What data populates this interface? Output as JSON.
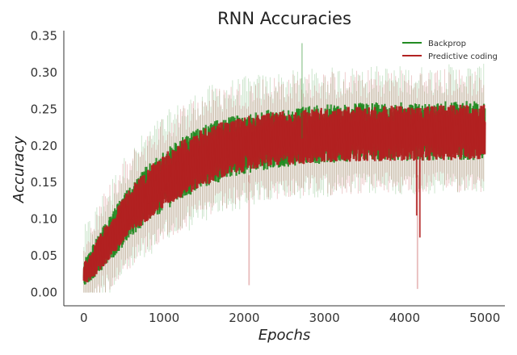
{
  "chart_data": {
    "type": "line",
    "title": "RNN Accuracies",
    "xlabel": "Epochs",
    "ylabel": "Accuracy",
    "xlim": [
      -250,
      5250
    ],
    "ylim": [
      -0.018,
      0.357
    ],
    "xticks": [
      0,
      1000,
      2000,
      3000,
      4000,
      5000
    ],
    "xtick_labels": [
      "0",
      "1000",
      "2000",
      "3000",
      "4000",
      "5000"
    ],
    "yticks": [
      0.0,
      0.05,
      0.1,
      0.15,
      0.2,
      0.25,
      0.3,
      0.35
    ],
    "ytick_labels": [
      "0.00",
      "0.05",
      "0.10",
      "0.15",
      "0.20",
      "0.25",
      "0.30",
      "0.35"
    ],
    "grid": false,
    "legend_position": "top-right",
    "x": [
      0,
      250,
      500,
      750,
      1000,
      1250,
      1500,
      1750,
      2000,
      2250,
      2500,
      2750,
      3000,
      3250,
      3500,
      3750,
      4000,
      4250,
      4500,
      4750,
      5000
    ],
    "series": [
      {
        "name": "Backprop",
        "color": "#228b22",
        "mean": [
          0.02,
          0.06,
          0.095,
          0.125,
          0.148,
          0.165,
          0.178,
          0.188,
          0.195,
          0.2,
          0.204,
          0.207,
          0.21,
          0.212,
          0.213,
          0.214,
          0.215,
          0.216,
          0.217,
          0.217,
          0.218
        ],
        "low": [
          0.0,
          0.02,
          0.05,
          0.075,
          0.095,
          0.11,
          0.125,
          0.135,
          0.145,
          0.15,
          0.155,
          0.158,
          0.16,
          0.162,
          0.163,
          0.163,
          0.163,
          0.163,
          0.164,
          0.164,
          0.165
        ],
        "high": [
          0.05,
          0.1,
          0.145,
          0.18,
          0.205,
          0.225,
          0.24,
          0.25,
          0.255,
          0.26,
          0.262,
          0.265,
          0.267,
          0.268,
          0.27,
          0.27,
          0.27,
          0.27,
          0.272,
          0.272,
          0.272
        ],
        "max_spike": 0.34
      },
      {
        "name": "Predictive coding",
        "color": "#b22222",
        "mean": [
          0.02,
          0.058,
          0.093,
          0.122,
          0.145,
          0.162,
          0.175,
          0.185,
          0.192,
          0.197,
          0.201,
          0.204,
          0.207,
          0.209,
          0.21,
          0.211,
          0.212,
          0.213,
          0.214,
          0.214,
          0.215
        ],
        "low": [
          0.0,
          0.025,
          0.055,
          0.08,
          0.1,
          0.115,
          0.13,
          0.14,
          0.15,
          0.155,
          0.158,
          0.16,
          0.162,
          0.163,
          0.164,
          0.164,
          0.164,
          0.165,
          0.165,
          0.166,
          0.166
        ],
        "high": [
          0.045,
          0.095,
          0.14,
          0.175,
          0.2,
          0.22,
          0.235,
          0.245,
          0.25,
          0.255,
          0.258,
          0.26,
          0.262,
          0.263,
          0.264,
          0.265,
          0.265,
          0.265,
          0.266,
          0.266,
          0.267
        ],
        "min_spike": 0.0
      }
    ]
  }
}
